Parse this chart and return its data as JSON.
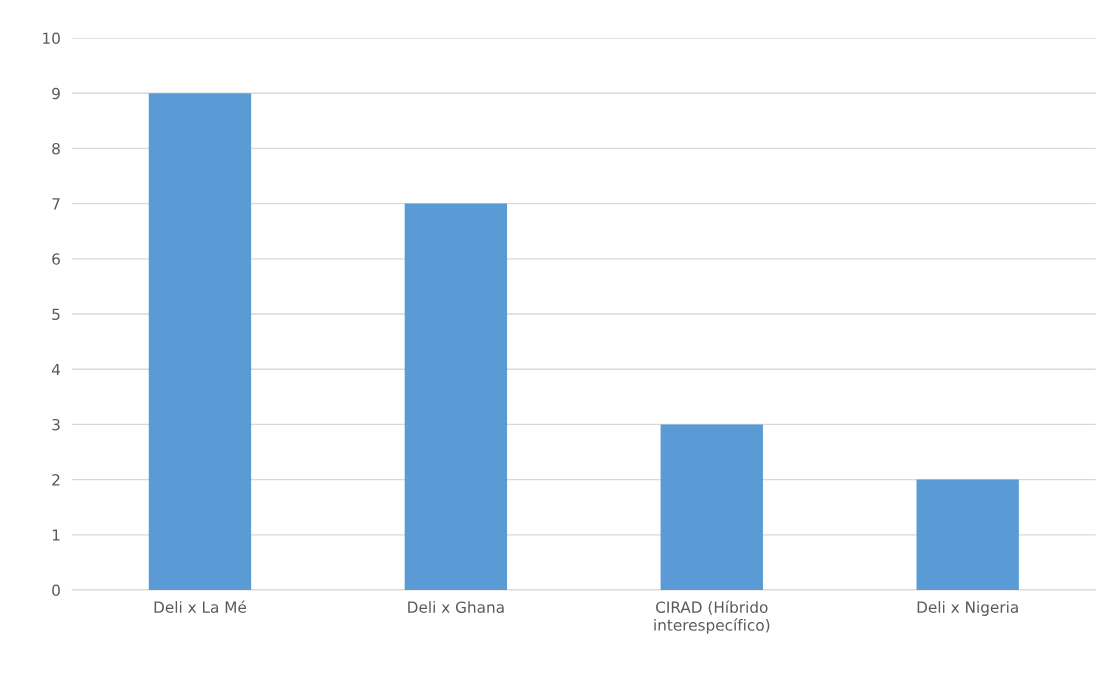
{
  "chart_data": {
    "type": "bar",
    "categories": [
      "Deli x La Mé",
      "Deli x Ghana",
      "CIRAD (Híbrido\ninterespecífico)",
      "Deli x Nigeria"
    ],
    "values": [
      9,
      7,
      3,
      2
    ],
    "color": "#5b9bd5",
    "ylim": [
      0,
      10
    ],
    "yticks": [
      0,
      1,
      2,
      3,
      4,
      5,
      6,
      7,
      8,
      9,
      10
    ],
    "grid": "y"
  }
}
